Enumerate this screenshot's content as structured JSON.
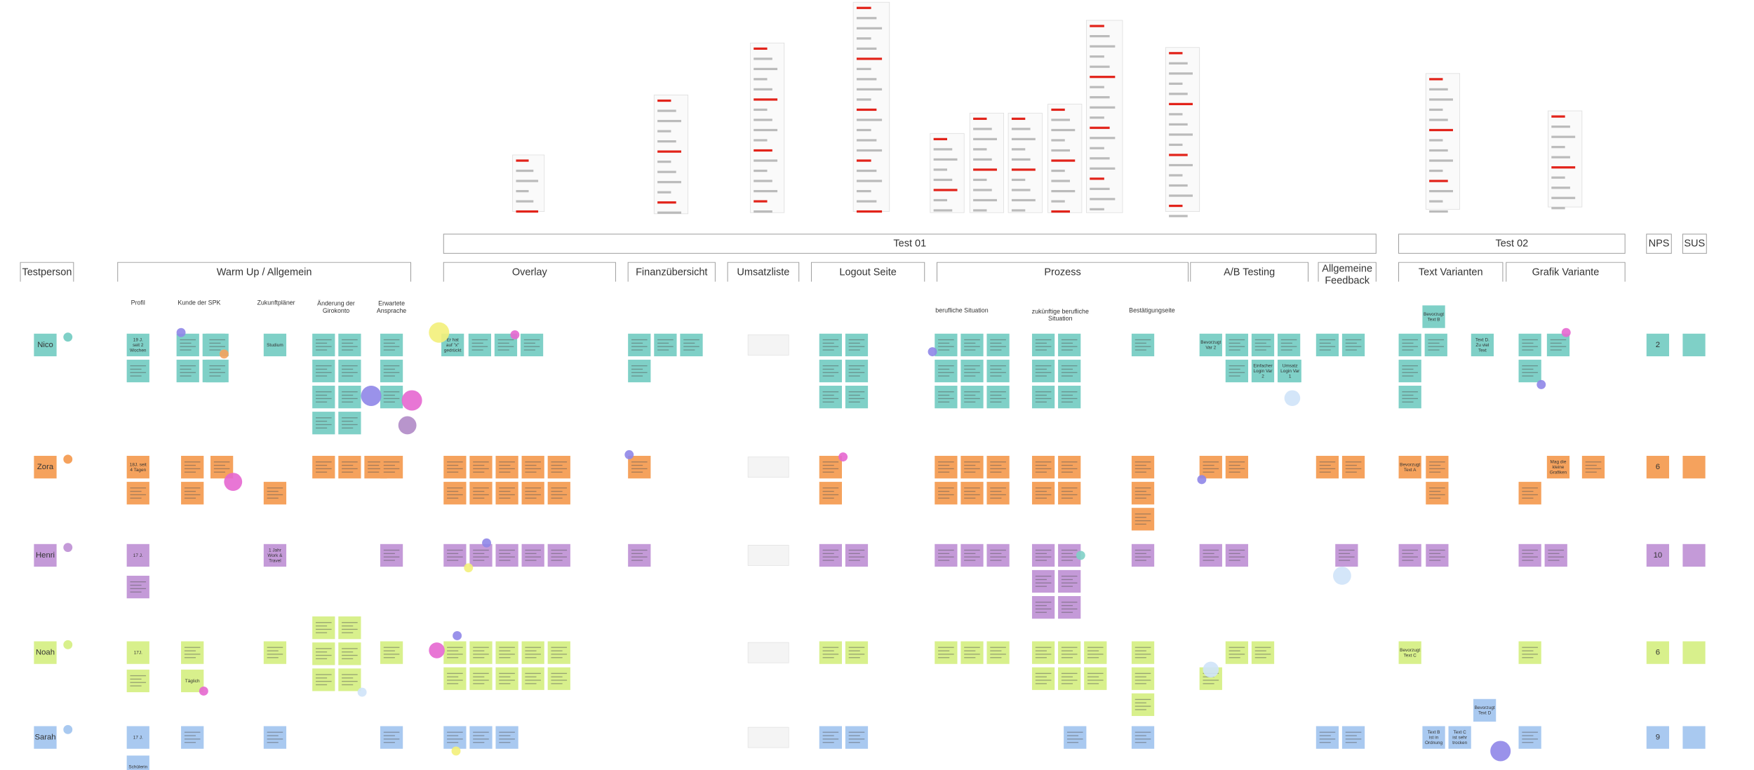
{
  "board": {
    "groups": [
      {
        "label": "Test 01"
      },
      {
        "label": "Test 02"
      },
      {
        "label": "NPS"
      },
      {
        "label": "SUS"
      }
    ],
    "sections": [
      {
        "label": "Testperson"
      },
      {
        "label": "Warm Up / Allgemein"
      },
      {
        "label": "Overlay"
      },
      {
        "label": "Finanzübersicht"
      },
      {
        "label": "Umsatzliste"
      },
      {
        "label": "Logout Seite"
      },
      {
        "label": "Prozess"
      },
      {
        "label": "A/B Testing"
      },
      {
        "label": "Allgemeine Feedback"
      },
      {
        "label": "Text Varianten"
      },
      {
        "label": "Grafik Variante"
      }
    ],
    "subsections": [
      {
        "label": "Profil"
      },
      {
        "label": "Kunde der SPK"
      },
      {
        "label": "Zukunftpläner"
      },
      {
        "label": "Änderung der Girokonto"
      },
      {
        "label": "Erwartete Ansprache"
      },
      {
        "label": "berufliche Situation"
      },
      {
        "label": "zukünftige berufliche Situation"
      },
      {
        "label": "Bestätigungseite"
      }
    ],
    "participants": [
      {
        "name": "Nico",
        "nps": 2,
        "color": "#7fd0c7"
      },
      {
        "name": "Zora",
        "nps": 6,
        "color": "#f5a25d"
      },
      {
        "name": "Henri",
        "nps": 10,
        "color": "#c49ad8"
      },
      {
        "name": "Noah",
        "nps": 6,
        "color": "#d8f08c"
      },
      {
        "name": "Sarah",
        "nps": 9,
        "color": "#a9c9f0"
      }
    ],
    "notes": [
      {
        "text": "19 J. seit 2 Wochen"
      },
      {
        "text": "Studium"
      },
      {
        "text": "Er hat auf \"x\" gedrückt"
      },
      {
        "text": "Bevorzugt Var 2"
      },
      {
        "text": "Einfacher Login Var 2"
      },
      {
        "text": "Umsatz Login Var 1"
      },
      {
        "text": "Bevorzugt Text B"
      },
      {
        "text": "Text D. Zu viel Text"
      },
      {
        "text": "18J. seit 4 Tagen"
      },
      {
        "text": "Bevorzugt Text A"
      },
      {
        "text": "Mag die kleine Grafiken"
      },
      {
        "text": "17 J."
      },
      {
        "text": "1 Jahr Work & Travel"
      },
      {
        "text": "17J."
      },
      {
        "text": "Täglich"
      },
      {
        "text": "Bevorzugt Text C"
      },
      {
        "text": "17 J."
      },
      {
        "text": "Schülerin"
      },
      {
        "text": "Text B ist in Ordnung"
      },
      {
        "text": "Text C ist sehr trocken"
      },
      {
        "text": "Bevorzugt Text D"
      }
    ]
  }
}
